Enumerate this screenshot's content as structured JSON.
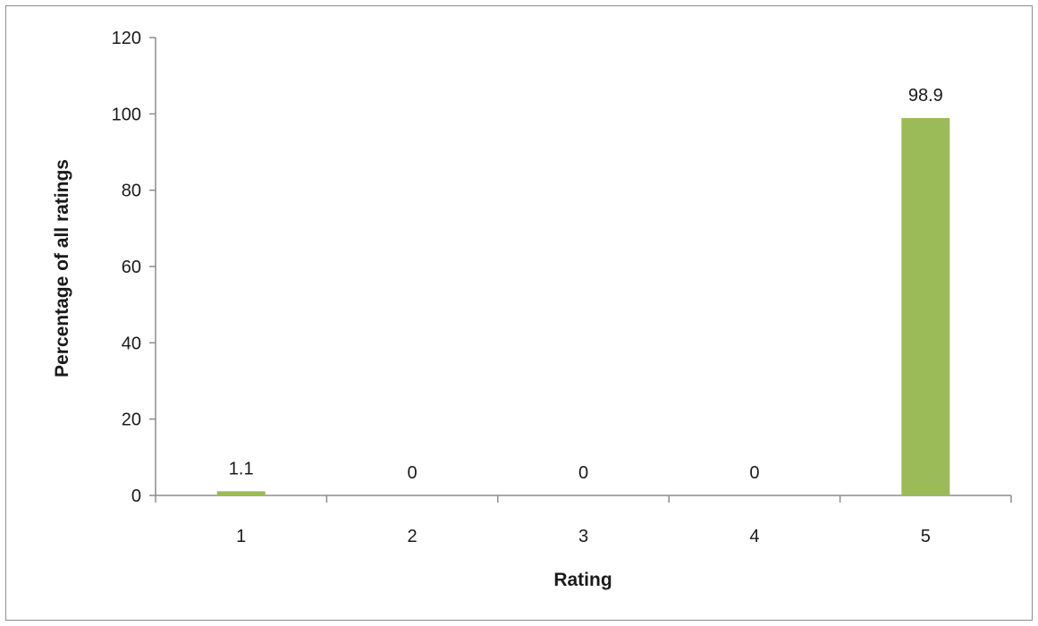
{
  "chart_data": {
    "type": "bar",
    "categories": [
      "1",
      "2",
      "3",
      "4",
      "5"
    ],
    "values": [
      1.1,
      0,
      0,
      0,
      98.9
    ],
    "data_labels": [
      "1.1",
      "0",
      "0",
      "0",
      "98.9"
    ],
    "title": "",
    "xlabel": "Rating",
    "ylabel": "Percentage of all ratings",
    "ylim": [
      0,
      120
    ],
    "yticks": [
      "0",
      "20",
      "40",
      "60",
      "80",
      "100",
      "120"
    ],
    "grid": false,
    "legend": "none",
    "bar_color": "#9bbb59"
  }
}
